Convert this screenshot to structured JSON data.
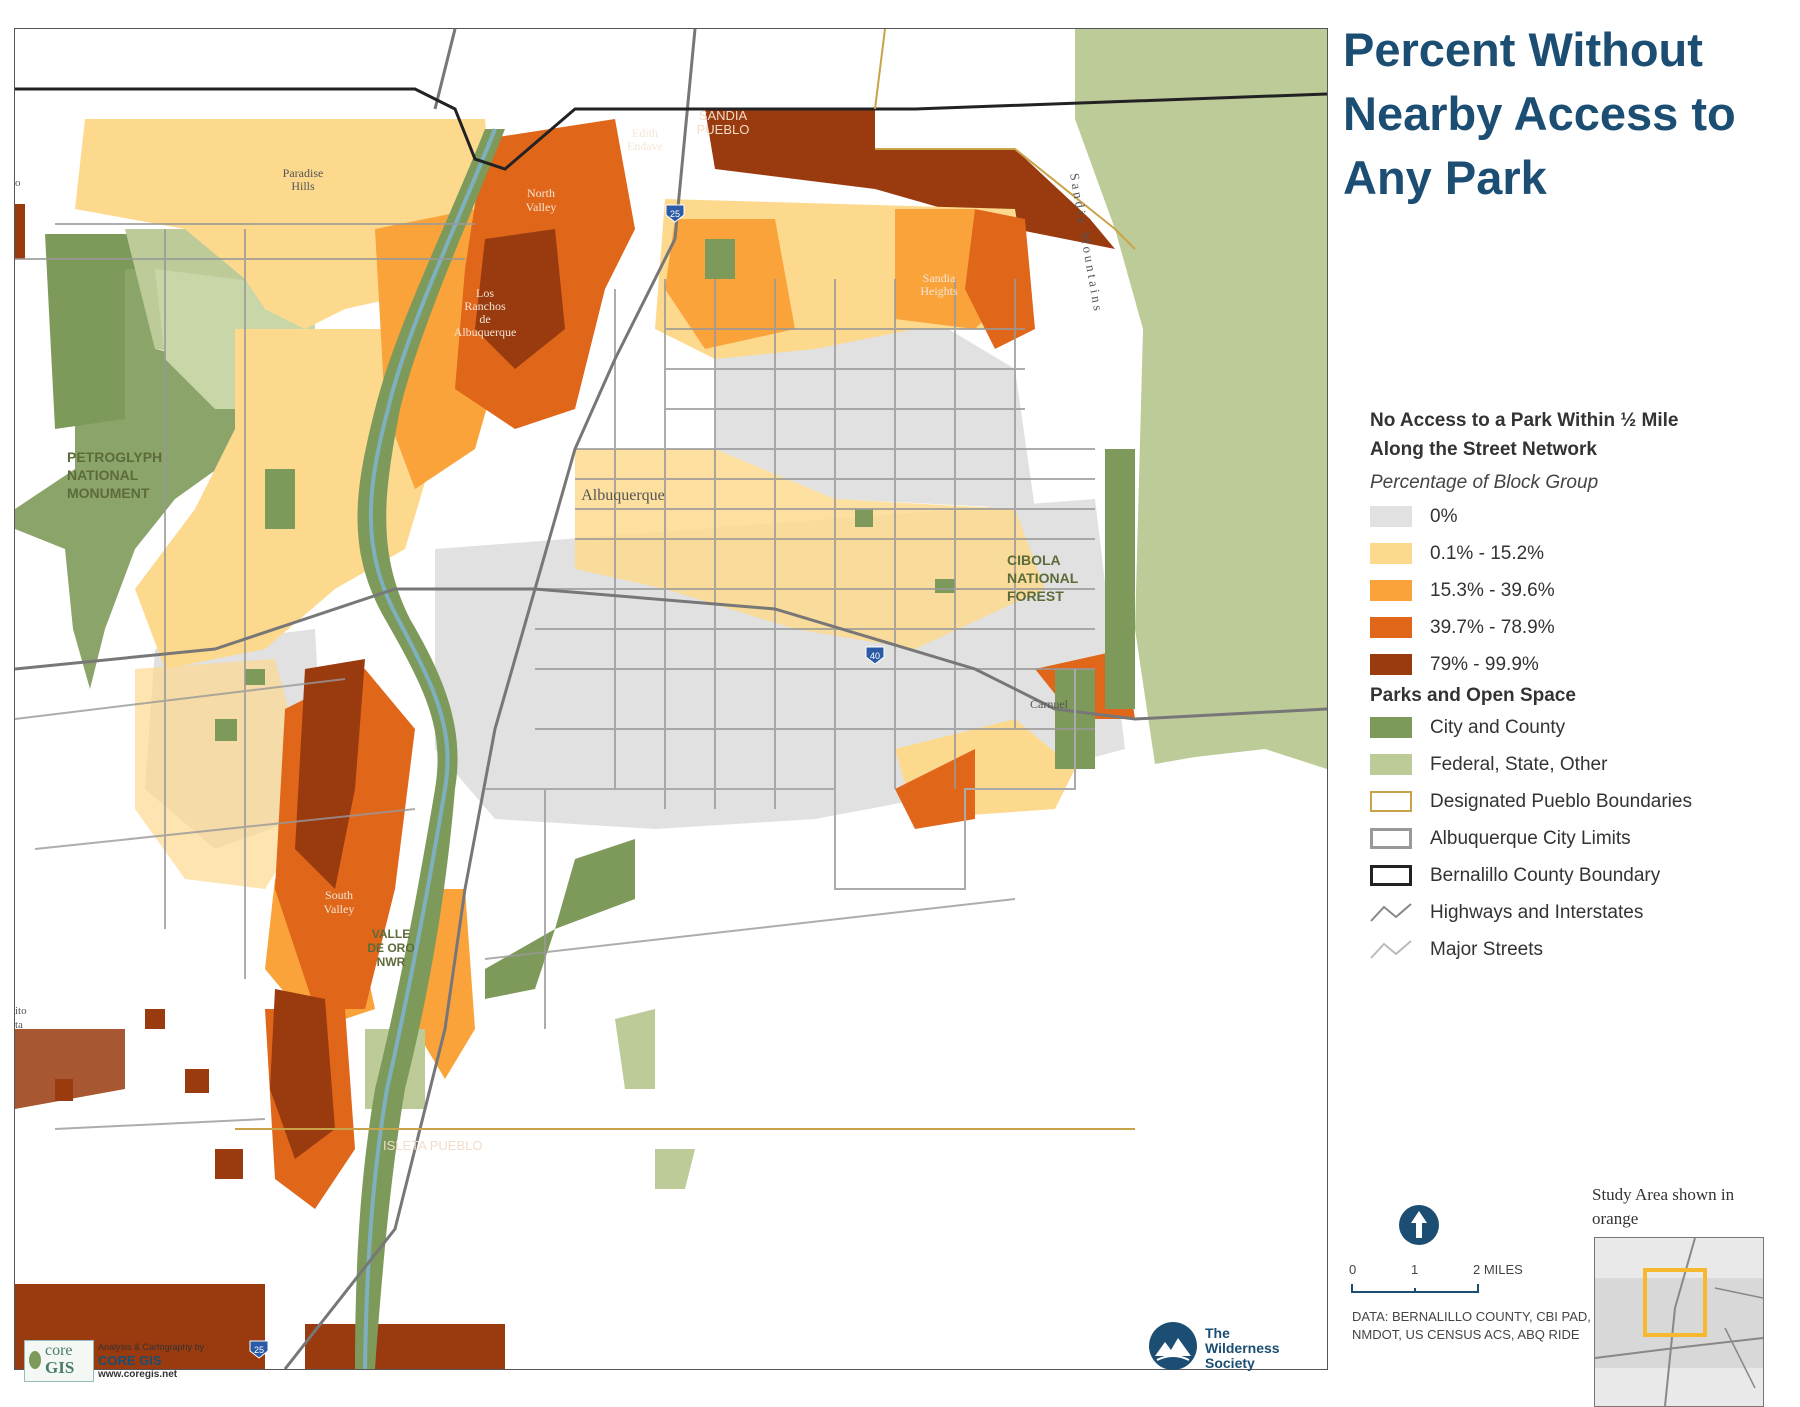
{
  "title": "Percent Without Nearby Access to Any Park",
  "legend": {
    "heading": "No Access to a Park Within ½ Mile Along the Street Network",
    "subheading": "Percentage of Block Group",
    "classes": [
      {
        "label": "0%",
        "color": "#e1e1e1"
      },
      {
        "label": "0.1% - 15.2%",
        "color": "#fdd98e"
      },
      {
        "label": "15.3% - 39.6%",
        "color": "#f9a33a"
      },
      {
        "label": "39.7% - 78.9%",
        "color": "#e0661a"
      },
      {
        "label": "79% - 99.9%",
        "color": "#993a0f"
      }
    ],
    "parks_heading": "Parks and Open Space",
    "parks": [
      {
        "label": "City and County",
        "color": "#7e9a5a"
      },
      {
        "label": "Federal, State, Other",
        "color": "#bccb98"
      }
    ],
    "lines": [
      {
        "label": "Designated Pueblo Boundaries",
        "color": "#c9a34a",
        "icon": "pueblo-boundary"
      },
      {
        "label": "Albuquerque City Limits",
        "color": "#999999",
        "icon": "city-limits"
      },
      {
        "label": "Bernalillo County Boundary",
        "color": "#222222",
        "icon": "county-boundary"
      },
      {
        "label": "Highways and Interstates",
        "color": "#888888",
        "icon": "highway-line"
      },
      {
        "label": "Major Streets",
        "color": "#bbbbbb",
        "icon": "street-line"
      }
    ]
  },
  "map_labels": {
    "sandia_pueblo": [
      "SANDIA",
      "PUEBLO"
    ],
    "edith_endave": [
      "Edith",
      "Endave"
    ],
    "paradise_hills": [
      "Paradise",
      "Hills"
    ],
    "north_valley": [
      "North",
      "Valley"
    ],
    "los_ranchos": [
      "Los",
      "Ranchos",
      "de",
      "Albuquerque"
    ],
    "sandia_heights": [
      "Sandia",
      "Heights"
    ],
    "sandia_mountains": "Sandia Mountains",
    "petroglyph": [
      "PETROGLYPH",
      "NATIONAL",
      "MONUMENT"
    ],
    "albuquerque": "Albuquerque",
    "cibola": [
      "CIBOLA",
      "NATIONAL",
      "FOREST"
    ],
    "carnuel": "Carnuel",
    "south_valley": [
      "South",
      "Valley"
    ],
    "valle_de_oro": [
      "VALLE",
      "DE ORO",
      "NWR"
    ],
    "isleta_pueblo": "ISLETA PUEBLO",
    "i25_shield": "25",
    "i40_shield": "40",
    "edge_fragment_1": "o",
    "edge_fragment_2": [
      "ito",
      "ta"
    ]
  },
  "north_arrow_icon": "north-arrow-icon",
  "scale": {
    "ticks": [
      "0",
      "1",
      "2 MILES"
    ]
  },
  "data_credit": "DATA:  BERNALILLO COUNTY, CBI PAD, NMDOT, US CENSUS ACS, ABQ RIDE",
  "inset": {
    "title": "Study Area shown in orange",
    "highlight_color": "#f5b82e"
  },
  "credits": {
    "coregis_small": "Analysis & Cartography by",
    "coregis_name": "CORE GIS",
    "coregis_url": "www.coregis.net",
    "coregis_logo": [
      "core",
      "GIS"
    ],
    "wilderness": [
      "The",
      "Wilderness",
      "Society"
    ]
  }
}
